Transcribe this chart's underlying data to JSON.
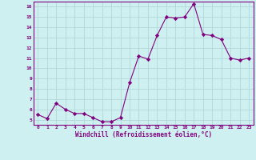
{
  "x": [
    0,
    1,
    2,
    3,
    4,
    5,
    6,
    7,
    8,
    9,
    10,
    11,
    12,
    13,
    14,
    15,
    16,
    17,
    18,
    19,
    20,
    21,
    22,
    23
  ],
  "y": [
    5.5,
    5.1,
    6.6,
    6.0,
    5.6,
    5.6,
    5.2,
    4.8,
    4.8,
    5.2,
    8.6,
    11.2,
    10.9,
    13.2,
    15.0,
    14.9,
    15.0,
    16.3,
    13.3,
    13.2,
    12.8,
    11.0,
    10.8,
    11.0
  ],
  "line_color": "#800080",
  "marker": "D",
  "marker_size": 2.2,
  "bg_color": "#cff0f0",
  "grid_color": "#b0d8d8",
  "xlabel": "Windchill (Refroidissement éolien,°C)",
  "xlabel_color": "#800080",
  "tick_color": "#800080",
  "xlim": [
    -0.5,
    23.5
  ],
  "ylim": [
    4.5,
    16.5
  ],
  "yticks": [
    5,
    6,
    7,
    8,
    9,
    10,
    11,
    12,
    13,
    14,
    15,
    16
  ],
  "xticks": [
    0,
    1,
    2,
    3,
    4,
    5,
    6,
    7,
    8,
    9,
    10,
    11,
    12,
    13,
    14,
    15,
    16,
    17,
    18,
    19,
    20,
    21,
    22,
    23
  ]
}
